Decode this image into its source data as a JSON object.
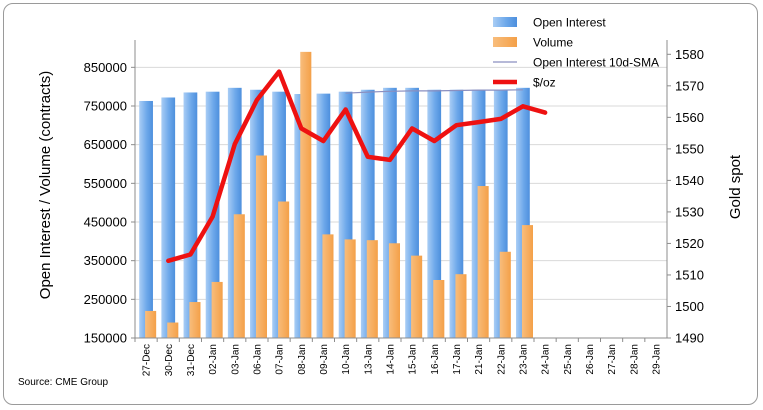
{
  "source_text": "Source: CME Group",
  "colors": {
    "open_interest": "#6da8ea",
    "volume": "#f4a048",
    "sma": "#8a8fc0",
    "gold": "#ee1111",
    "grid": "#d9d9d9"
  },
  "chart_data": {
    "type": "bar",
    "categories": [
      "27-Dec",
      "30-Dec",
      "31-Dec",
      "02-Jan",
      "03-Jan",
      "06-Jan",
      "07-Jan",
      "08-Jan",
      "09-Jan",
      "10-Jan",
      "13-Jan",
      "14-Jan",
      "15-Jan",
      "16-Jan",
      "17-Jan",
      "21-Jan",
      "22-Jan",
      "23-Jan",
      "24-Jan",
      "25-Jan",
      "26-Jan",
      "27-Jan",
      "28-Jan",
      "29-Jan"
    ],
    "ylabel": "Open Interest / Volume (contracts)",
    "y2label": "Gold spot",
    "ylim": [
      150000,
      900000
    ],
    "y_ticks": [
      "150000",
      "250000",
      "350000",
      "450000",
      "550000",
      "650000",
      "750000",
      "850000"
    ],
    "y2lim": [
      1490,
      1582
    ],
    "y2_ticks": [
      "1490",
      "1500",
      "1510",
      "1520",
      "1530",
      "1540",
      "1550",
      "1560",
      "1570",
      "1580"
    ],
    "grid": true,
    "legend_placement": "top-right",
    "series": [
      {
        "name": "Open Interest",
        "kind": "bar",
        "values": [
          763000,
          772000,
          785000,
          787000,
          797000,
          792000,
          787000,
          781000,
          782000,
          787000,
          792000,
          797000,
          797000,
          792000,
          792000,
          792000,
          792000,
          797000,
          null,
          null,
          null,
          null,
          null,
          null
        ]
      },
      {
        "name": "Volume",
        "kind": "bar",
        "values": [
          220000,
          190000,
          243000,
          295000,
          470000,
          622000,
          503000,
          890000,
          418000,
          405000,
          403000,
          395000,
          363000,
          300000,
          315000,
          543000,
          373000,
          442000,
          null,
          null,
          null,
          null,
          null,
          null
        ]
      },
      {
        "name": "Open Interest 10d-SMA",
        "kind": "line",
        "values": [
          null,
          null,
          null,
          null,
          null,
          null,
          null,
          null,
          null,
          783000,
          786000,
          788000,
          789000,
          789000,
          790000,
          791000,
          791000,
          792000,
          null,
          null,
          null,
          null,
          null,
          null
        ]
      },
      {
        "name": "$/oz",
        "kind": "line",
        "axis": "right",
        "values": [
          null,
          1514.5,
          1516.5,
          1528.5,
          1551.5,
          1565.5,
          1574.5,
          1556.5,
          1552.5,
          1562.5,
          1547.5,
          1546.5,
          1556.5,
          1552.5,
          1557.5,
          1558.5,
          1559.5,
          1563.5,
          1561.5,
          null,
          null,
          null,
          null,
          null
        ]
      }
    ]
  }
}
